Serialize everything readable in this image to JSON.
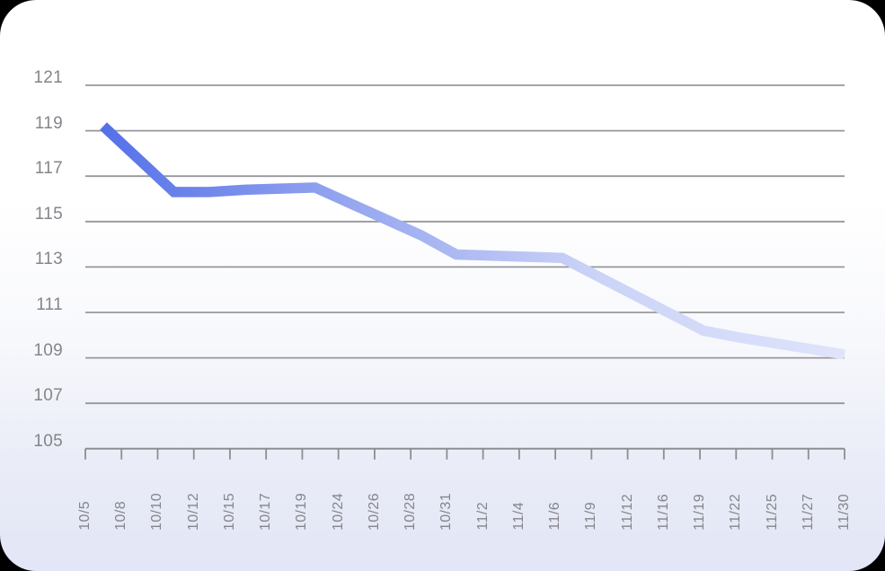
{
  "chart_data": {
    "type": "line",
    "title": "",
    "xlabel": "",
    "ylabel": "",
    "categories": [
      "10/5",
      "10/8",
      "10/10",
      "10/12",
      "10/15",
      "10/17",
      "10/19",
      "10/24",
      "10/26",
      "10/28",
      "10/31",
      "11/2",
      "11/4",
      "11/6",
      "11/9",
      "11/12",
      "11/16",
      "11/19",
      "11/22",
      "11/25",
      "11/27",
      "11/30"
    ],
    "series": [
      {
        "name": "value",
        "values": [
          119.2,
          117.75,
          116.3,
          116.3,
          116.4,
          116.45,
          116.5,
          115.8,
          115.1,
          114.4,
          113.55,
          113.5,
          113.45,
          113.4,
          112.6,
          111.8,
          111.0,
          110.2,
          109.9,
          109.65,
          109.4,
          109.15
        ]
      }
    ],
    "y_tick_labels": [
      "121",
      "119",
      "117",
      "115",
      "113",
      "111",
      "109",
      "107",
      "105"
    ],
    "y_tick_values": [
      121,
      119,
      117,
      115,
      113,
      111,
      109,
      107,
      105
    ],
    "ylim": [
      105,
      121
    ],
    "grid": "horizontal-only",
    "legend": "none",
    "colors": {
      "line_gradient_stops": [
        "#5571E8",
        "#96A7EF",
        "#CBD3F7",
        "#DFE4FB"
      ],
      "gridline": "#97979b",
      "axis": "#8d8d92",
      "tick_label": "#85858a",
      "card_background_top": "#ffffff",
      "card_background_bottom": "#e2e6f6"
    }
  }
}
